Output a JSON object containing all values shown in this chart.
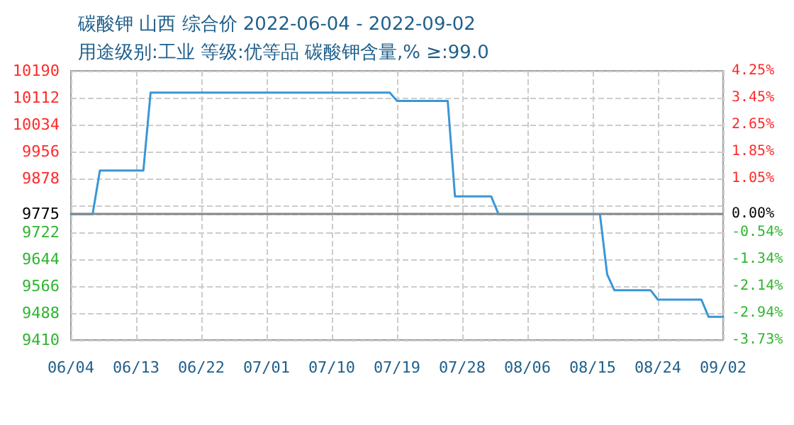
{
  "chart_data": {
    "type": "line",
    "title": "碳酸钾 山西 综合价 2022-06-04 - 2022-09-02",
    "subtitle": "用途级别:工业 等级:优等品 碳酸钾含量,% ≥:99.0",
    "x": [
      "2022-06-04",
      "2022-06-07",
      "2022-06-08",
      "2022-06-14",
      "2022-06-15",
      "2022-07-18",
      "2022-07-19",
      "2022-07-26",
      "2022-07-27",
      "2022-08-01",
      "2022-08-02",
      "2022-08-16",
      "2022-08-17",
      "2022-08-18",
      "2022-08-23",
      "2022-08-24",
      "2022-08-30",
      "2022-08-31",
      "2022-09-02"
    ],
    "series": [
      {
        "color": "#3a96d6",
        "values": [
          9775,
          9775,
          9901,
          9901,
          10127,
          10127,
          10103,
          10103,
          9826,
          9826,
          9775,
          9775,
          9600,
          9554,
          9554,
          9527,
          9527,
          9477,
          9477
        ]
      }
    ],
    "xlim": [
      "2022-06-04",
      "2022-09-02"
    ],
    "xticks": [
      {
        "value": "2022-06-04",
        "label": "06/04"
      },
      {
        "value": "2022-06-13",
        "label": "06/13"
      },
      {
        "value": "2022-06-22",
        "label": "06/22"
      },
      {
        "value": "2022-07-01",
        "label": "07/01"
      },
      {
        "value": "2022-07-10",
        "label": "07/10"
      },
      {
        "value": "2022-07-19",
        "label": "07/19"
      },
      {
        "value": "2022-07-28",
        "label": "07/28"
      },
      {
        "value": "2022-08-06",
        "label": "08/06"
      },
      {
        "value": "2022-08-15",
        "label": "08/15"
      },
      {
        "value": "2022-08-24",
        "label": "08/24"
      },
      {
        "value": "2022-09-02",
        "label": "09/02"
      }
    ],
    "ylim": [
      9410,
      10190
    ],
    "yticks": [
      9410,
      9488,
      9566,
      9644,
      9722,
      9775,
      {
        "value": 9800,
        "label": null
      },
      9878,
      9956,
      10034,
      10112,
      10190
    ],
    "y2lim": [
      -3.73,
      4.25
    ],
    "y2ticks": [
      {
        "value": -3.73,
        "label": "-3.73%"
      },
      {
        "value": -2.94,
        "label": "-2.94%"
      },
      {
        "value": -2.14,
        "label": "-2.14%"
      },
      {
        "value": -1.34,
        "label": "-1.34%"
      },
      {
        "value": -0.54,
        "label": "-0.54%"
      },
      {
        "value": 0,
        "label": "0.00%"
      },
      {
        "value": 1.05,
        "label": "1.05%"
      },
      {
        "value": 1.85,
        "label": "1.85%"
      },
      {
        "value": 2.65,
        "label": "2.65%"
      },
      {
        "value": 3.45,
        "label": "3.45%"
      },
      {
        "value": 4.25,
        "label": "4.25%"
      }
    ],
    "ref_lines": [
      {
        "axis": "y",
        "value": 9775,
        "color": "#888888"
      }
    ],
    "grid": true,
    "marker": "none",
    "line_style": "solid"
  }
}
